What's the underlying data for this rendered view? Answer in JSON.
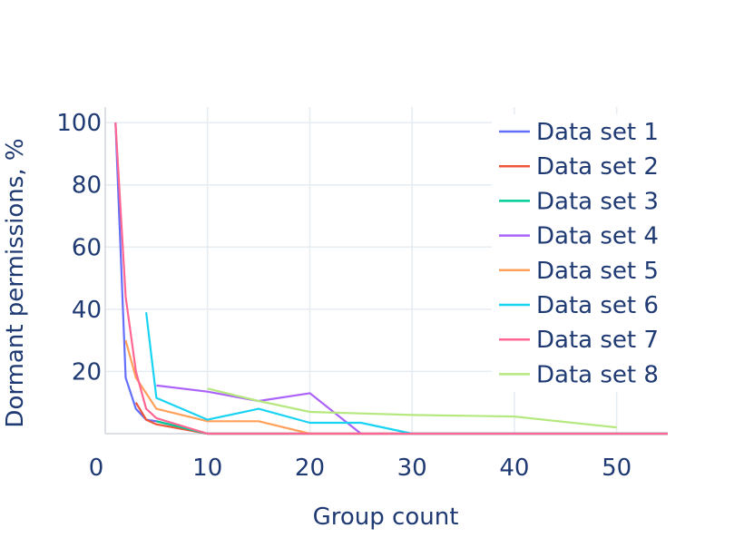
{
  "chart_data": {
    "type": "line",
    "xlabel": "Group count",
    "ylabel": "Dormant permissions, %",
    "xlim": [
      0,
      55
    ],
    "ylim": [
      0,
      105
    ],
    "xticks": [
      0,
      10,
      20,
      30,
      40,
      50
    ],
    "yticks": [
      20,
      40,
      60,
      80,
      100
    ],
    "grid": true,
    "legend_position": "top-right",
    "series": [
      {
        "name": "Data set 1",
        "color": "#636efa",
        "x": [
          1,
          2,
          3,
          4,
          5,
          10,
          55
        ],
        "y": [
          100,
          18,
          8,
          4.5,
          4,
          0,
          0
        ]
      },
      {
        "name": "Data set 2",
        "color": "#ef553b",
        "x": [
          3,
          4,
          5,
          10,
          55
        ],
        "y": [
          10,
          4.5,
          3,
          0,
          0
        ]
      },
      {
        "name": "Data set 3",
        "color": "#00cc96",
        "x": [
          5,
          10,
          55
        ],
        "y": [
          4,
          0,
          0
        ]
      },
      {
        "name": "Data set 4",
        "color": "#ab63fa",
        "x": [
          5,
          10,
          15,
          20,
          25,
          55
        ],
        "y": [
          15.5,
          13.5,
          10.5,
          13,
          0,
          0
        ]
      },
      {
        "name": "Data set 5",
        "color": "#ffa15a",
        "x": [
          2,
          3,
          5,
          10,
          15,
          20,
          55
        ],
        "y": [
          30,
          18,
          8,
          4,
          4,
          0,
          0
        ]
      },
      {
        "name": "Data set 6",
        "color": "#19d3f3",
        "x": [
          4,
          5,
          10,
          15,
          20,
          25,
          30,
          55
        ],
        "y": [
          39,
          11.5,
          4.5,
          8,
          3.5,
          3.5,
          0,
          0
        ]
      },
      {
        "name": "Data set 7",
        "color": "#ff6692",
        "x": [
          1,
          2,
          3,
          4,
          5,
          10,
          55
        ],
        "y": [
          100,
          44,
          20,
          8,
          5,
          0,
          0
        ]
      },
      {
        "name": "Data set 8",
        "color": "#b6e880",
        "x": [
          10,
          15,
          20,
          30,
          40,
          50
        ],
        "y": [
          14.5,
          10.5,
          7,
          6,
          5.5,
          2
        ]
      }
    ]
  }
}
